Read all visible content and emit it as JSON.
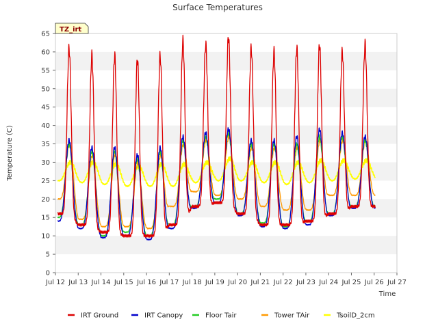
{
  "chart_data": {
    "type": "line",
    "title": "Surface Temperatures",
    "xlabel": "Time",
    "ylabel": "Temperature (C)",
    "badge": "TZ_irt",
    "xlim": [
      12,
      27
    ],
    "ylim": [
      0,
      65
    ],
    "x_ticks": [
      {
        "value": 12,
        "label": "Jul 12"
      },
      {
        "value": 13,
        "label": "Jul 13"
      },
      {
        "value": 14,
        "label": "Jul 14"
      },
      {
        "value": 15,
        "label": "Jul 15"
      },
      {
        "value": 16,
        "label": "Jul 16"
      },
      {
        "value": 17,
        "label": "Jul 17"
      },
      {
        "value": 18,
        "label": "Jul 18"
      },
      {
        "value": 19,
        "label": "Jul 19"
      },
      {
        "value": 20,
        "label": "Jul 20"
      },
      {
        "value": 21,
        "label": "Jul 21"
      },
      {
        "value": 22,
        "label": "Jul 22"
      },
      {
        "value": 23,
        "label": "Jul 23"
      },
      {
        "value": 24,
        "label": "Jul 24"
      },
      {
        "value": 25,
        "label": "Jul 25"
      },
      {
        "value": 26,
        "label": "Jul 26"
      },
      {
        "value": 27,
        "label": "Jul 27"
      }
    ],
    "y_ticks": [
      0,
      5,
      10,
      15,
      20,
      25,
      30,
      35,
      40,
      45,
      50,
      55,
      60,
      65
    ],
    "grid": "horizontal alternating bands",
    "legend_position": "bottom",
    "days": [
      12,
      13,
      14,
      15,
      16,
      17,
      18,
      19,
      20,
      21,
      22,
      23,
      24,
      25
    ],
    "series": [
      {
        "name": "IRT Ground",
        "color": "#dd0000",
        "max": [
          61,
          59,
          59,
          58,
          59,
          63,
          62,
          64,
          61,
          60,
          61,
          62,
          60,
          62
        ],
        "min": [
          16,
          13,
          11,
          10,
          10,
          13,
          18,
          19,
          16,
          13,
          13,
          14,
          16,
          18
        ]
      },
      {
        "name": "IRT Canopy",
        "color": "#0000cc",
        "max": [
          36,
          34,
          34,
          32,
          34,
          37,
          38,
          39,
          36,
          36,
          37,
          39,
          38,
          37
        ],
        "min": [
          14,
          12,
          9.5,
          10,
          9,
          12,
          17.5,
          19,
          15.5,
          12.5,
          12,
          13,
          15.5,
          17.5
        ]
      },
      {
        "name": "Floor Tair",
        "color": "#22cc22",
        "max": [
          35,
          33,
          33,
          31,
          33,
          36,
          37,
          38,
          35,
          35,
          35,
          37,
          37,
          36
        ],
        "min": [
          15,
          13,
          10,
          11,
          10,
          13,
          18,
          20,
          16,
          13.5,
          12.5,
          14,
          16,
          18
        ]
      },
      {
        "name": "Tower TAir",
        "color": "#ff9900",
        "max": [
          35,
          32,
          32,
          30,
          32,
          35,
          36,
          37,
          34,
          34,
          34,
          36,
          36,
          36
        ],
        "min": [
          20,
          14.5,
          12.5,
          12.5,
          12,
          18,
          22,
          21,
          20,
          18,
          17,
          17,
          21,
          21
        ]
      },
      {
        "name": "TsoilD_2cm",
        "color": "#ffff00",
        "max": [
          30,
          30,
          29.5,
          29,
          29.5,
          29.5,
          30,
          31,
          30,
          30,
          30,
          30.5,
          30.5,
          30.5
        ],
        "min": [
          25,
          24.5,
          24,
          23.5,
          23.5,
          23.5,
          24.5,
          25,
          25,
          24.5,
          24,
          24.5,
          25,
          25.5
        ]
      }
    ]
  }
}
